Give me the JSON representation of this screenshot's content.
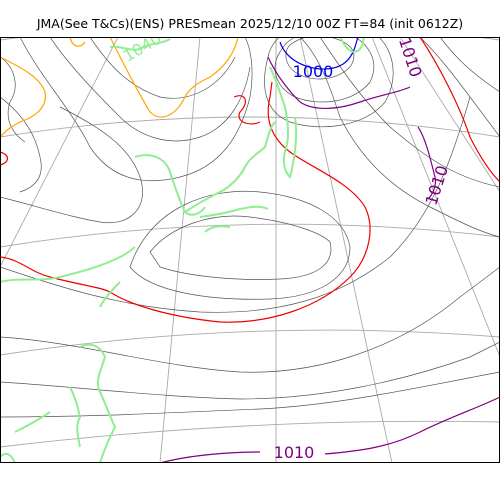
{
  "title": "JMA(See T&Cs)(ENS) PRESmean 2025/12/10 00Z FT=84 (init 0612Z)",
  "colors": {
    "coast": "#90ee90",
    "graticule": "#aaaaaa",
    "isobar_minor": "#555555",
    "isobar_1000": "#0000ee",
    "isobar_1010": "#800080",
    "isobar_1020": "#ee0000",
    "isobar_1030": "#ffa500"
  },
  "contour_labels": {
    "l1000": "1000",
    "l1010_a": "1010",
    "l1010_b": "1010",
    "l1010_c": "1010",
    "l1040": "1040"
  }
}
